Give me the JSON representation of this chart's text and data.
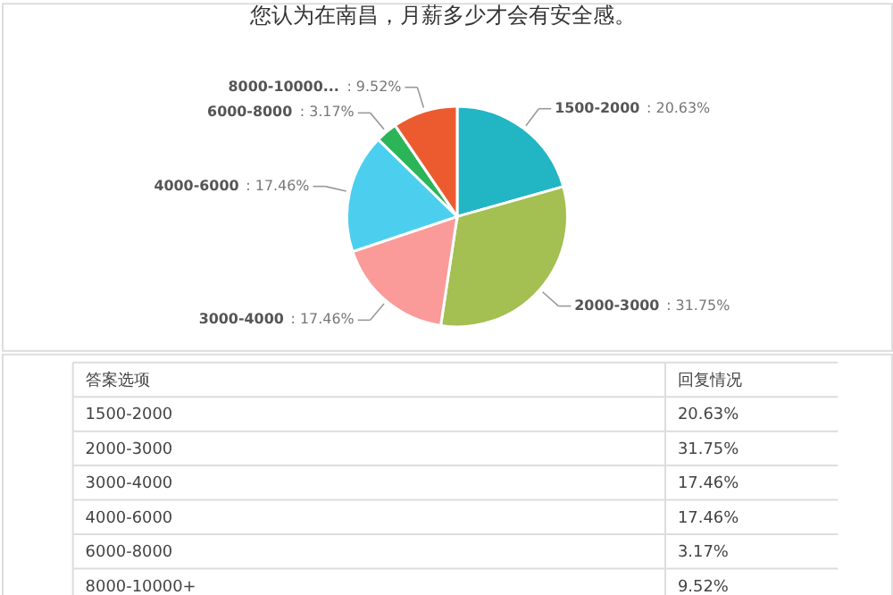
{
  "chart_data": [
    {
      "type": "pie",
      "title": "您认为在南昌，月薪多少才会有安全感。",
      "categories": [
        "1500-2000",
        "2000-3000",
        "3000-4000",
        "4000-6000",
        "6000-8000",
        "8000-10000..."
      ],
      "values": [
        20.63,
        31.75,
        17.46,
        17.46,
        3.17,
        9.52
      ],
      "colors": [
        "#22b5c4",
        "#a4bf52",
        "#fa9b99",
        "#4ccfef",
        "#2bb558",
        "#ec5b30"
      ],
      "value_labels": [
        ": 20.63%",
        ": 31.75%",
        ": 17.46%",
        ": 17.46%",
        ": 3.17%",
        ": 9.52%"
      ],
      "data_labels": true,
      "legend": false
    },
    {
      "type": "other",
      "annotations": [
        "答案选项",
        "回复情况"
      ],
      "categories": [
        "1500-2000",
        "2000-3000",
        "3000-4000",
        "4000-6000",
        "6000-8000",
        "8000-10000+"
      ],
      "values": [
        20.63,
        31.75,
        17.46,
        17.46,
        3.17,
        9.52
      ],
      "value_labels": [
        "20.63%",
        "31.75%",
        "17.46%",
        "17.46%",
        "3.17%",
        "9.52%"
      ],
      "data_labels": true
    }
  ]
}
